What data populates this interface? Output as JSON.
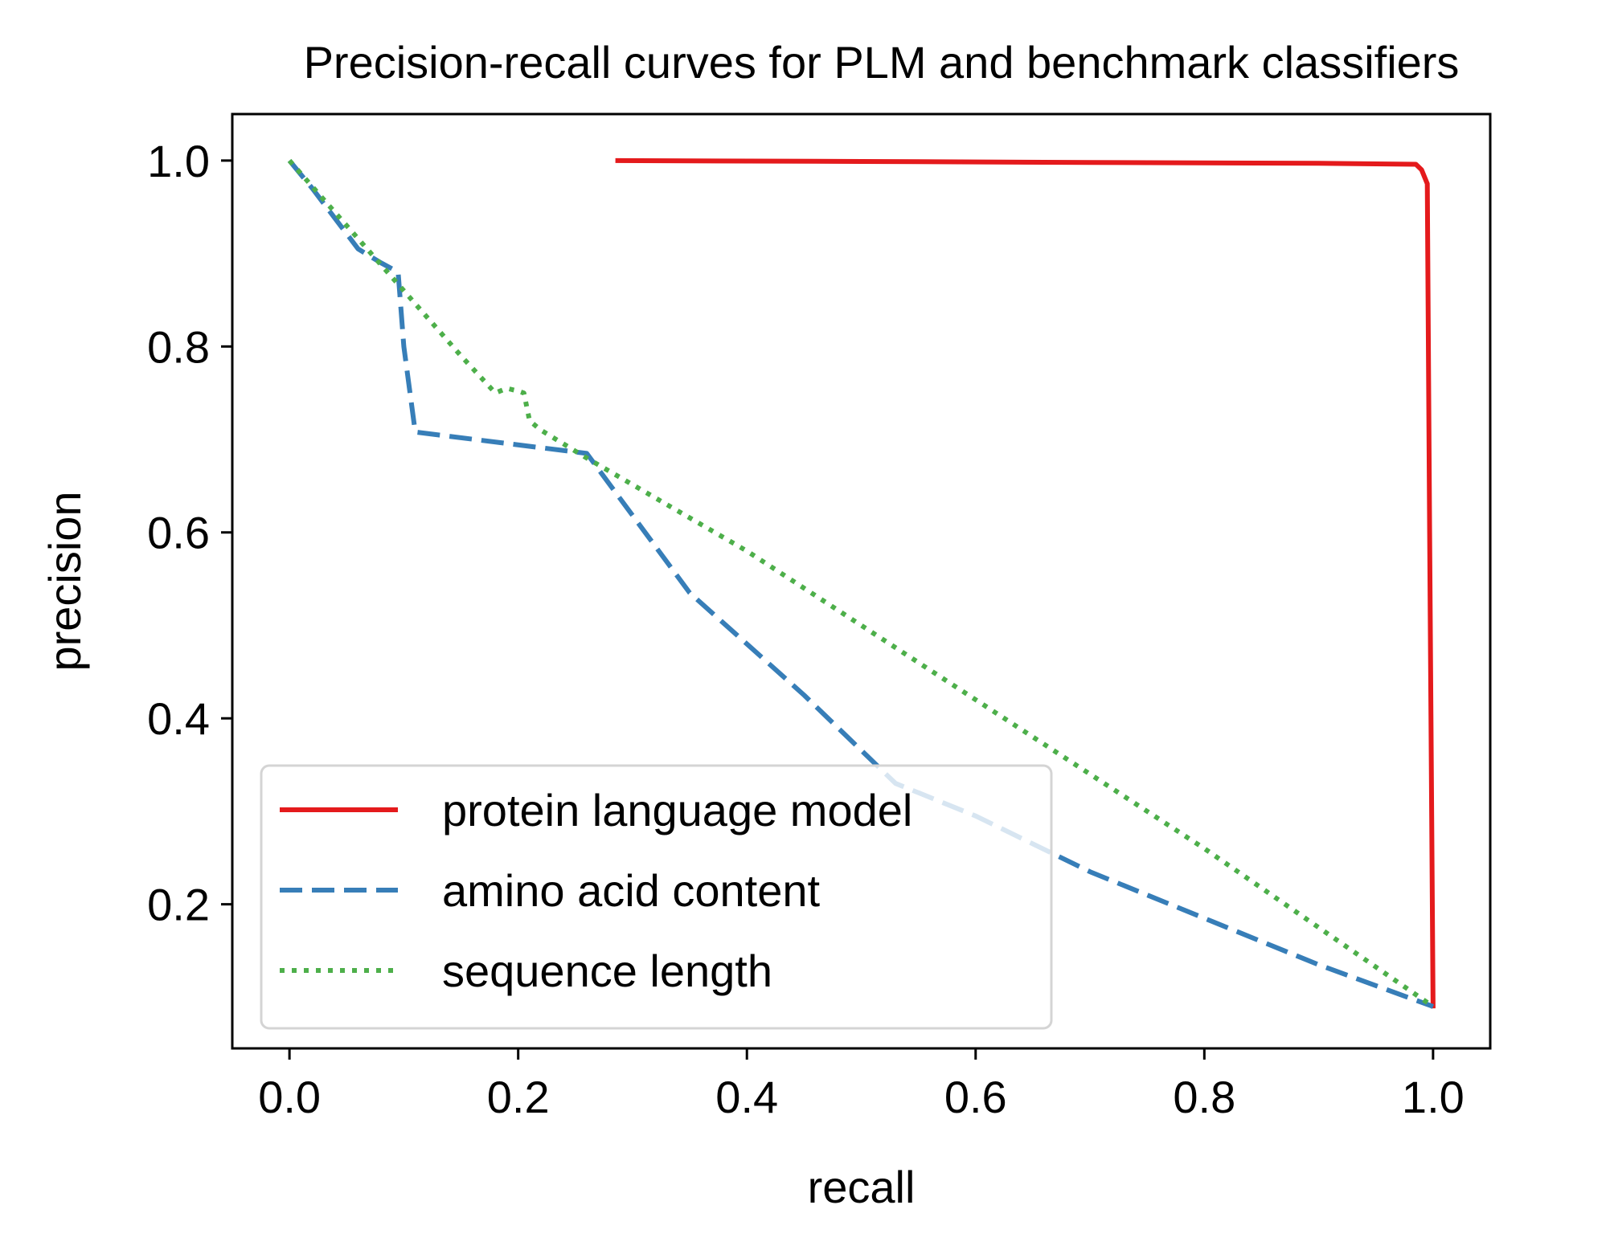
{
  "chart_data": {
    "type": "line",
    "title": "Precision-recall curves for PLM and benchmark classifiers",
    "xlabel": "recall",
    "ylabel": "precision",
    "xlim": [
      -0.05,
      1.05
    ],
    "ylim": [
      0.045,
      1.05
    ],
    "xticks": [
      0.0,
      0.2,
      0.4,
      0.6,
      0.8,
      1.0
    ],
    "xtick_labels": [
      "0.0",
      "0.2",
      "0.4",
      "0.6",
      "0.8",
      "1.0"
    ],
    "yticks": [
      0.2,
      0.4,
      0.6,
      0.8,
      1.0
    ],
    "ytick_labels": [
      "0.2",
      "0.4",
      "0.6",
      "0.8",
      "1.0"
    ],
    "grid": false,
    "legend_position": "lower-left",
    "series": [
      {
        "name": "protein language model",
        "color": "#e41a1c",
        "style": "solid",
        "x": [
          0.285,
          0.5,
          0.7,
          0.9,
          0.985,
          0.99,
          0.995,
          0.997,
          1.0
        ],
        "y": [
          1.0,
          0.999,
          0.998,
          0.997,
          0.996,
          0.99,
          0.975,
          0.6,
          0.088
        ]
      },
      {
        "name": "amino acid content",
        "color": "#377eb8",
        "style": "dashed",
        "x": [
          0.0,
          0.02,
          0.06,
          0.08,
          0.095,
          0.1,
          0.11,
          0.26,
          0.35,
          0.45,
          0.53,
          0.6,
          0.7,
          0.8,
          0.9,
          1.0
        ],
        "y": [
          1.0,
          0.97,
          0.905,
          0.89,
          0.88,
          0.8,
          0.708,
          0.685,
          0.535,
          0.425,
          0.33,
          0.295,
          0.235,
          0.185,
          0.135,
          0.09
        ]
      },
      {
        "name": "sequence length",
        "color": "#4daf4a",
        "style": "dotted",
        "x": [
          0.0,
          0.05,
          0.1,
          0.15,
          0.18,
          0.19,
          0.2,
          0.205,
          0.21,
          0.22,
          0.26,
          0.4,
          0.6,
          0.8,
          1.0
        ],
        "y": [
          1.0,
          0.93,
          0.86,
          0.79,
          0.75,
          0.755,
          0.752,
          0.75,
          0.72,
          0.71,
          0.68,
          0.58,
          0.42,
          0.26,
          0.09
        ]
      }
    ]
  }
}
